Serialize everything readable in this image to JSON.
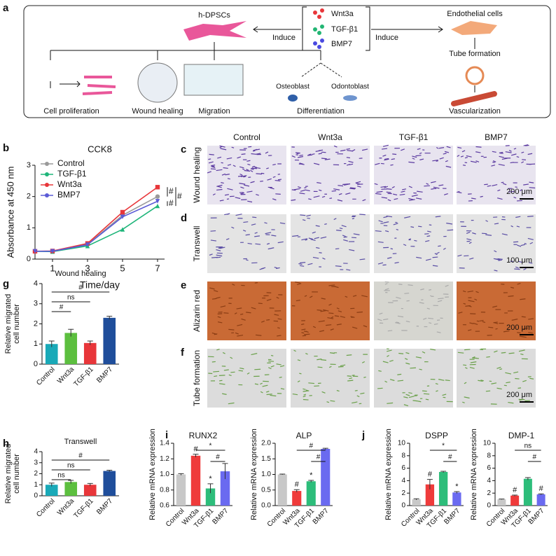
{
  "panel_a": {
    "letter": "a",
    "center": "h-DPSCs",
    "factors": [
      "Wnt3a",
      "TGF-β1",
      "BMP7"
    ],
    "induce_left": "Induce",
    "induce_right": "Induce",
    "endothelial": "Endothelial cells",
    "tube": "Tube formation",
    "vascular": "Vascularization",
    "outcomes": [
      "Cell proliferation",
      "Wound healing",
      "Migration",
      "Differentiation"
    ],
    "osteoblast": "Osteoblast",
    "odontoblast": "Odontoblast"
  },
  "micrographs": {
    "columns": [
      "Control",
      "Wnt3a",
      "TGF-β1",
      "BMP7"
    ],
    "rows": [
      {
        "letter": "c",
        "label": "Wound healing",
        "scale": "200 μm"
      },
      {
        "letter": "d",
        "label": "Transwell",
        "scale": "100 μm"
      },
      {
        "letter": "e",
        "label": "Alizarin red",
        "scale": "200 μm"
      },
      {
        "letter": "f",
        "label": "Tube formation",
        "scale": "200 μm"
      }
    ]
  },
  "chart_data": [
    {
      "type": "line",
      "letter": "b",
      "title": "CCK8",
      "xlabel": "Time/day",
      "ylabel": "Absorbance at 450 nm",
      "x": [
        0,
        1,
        3,
        5,
        7
      ],
      "xlim": [
        0,
        7.4
      ],
      "xticks": [
        1,
        3,
        5,
        7
      ],
      "ylim": [
        0,
        3
      ],
      "yticks": [
        0,
        1,
        2,
        3
      ],
      "legend": "upper left",
      "series": [
        {
          "name": "Control",
          "color": "#9a9a9a",
          "values": [
            0.25,
            0.25,
            0.47,
            1.4,
            2.0
          ]
        },
        {
          "name": "TGF-β1",
          "color": "#1fb57a",
          "values": [
            0.25,
            0.24,
            0.42,
            0.95,
            1.7
          ]
        },
        {
          "name": "Wnt3a",
          "color": "#e8363a",
          "values": [
            0.25,
            0.26,
            0.5,
            1.5,
            2.3
          ]
        },
        {
          "name": "BMP7",
          "color": "#5b5bd6",
          "values": [
            0.25,
            0.25,
            0.46,
            1.35,
            1.85
          ]
        }
      ],
      "annotations": [
        "#",
        "#",
        "#"
      ]
    },
    {
      "type": "bar",
      "letter": "g",
      "title": "Wound healing",
      "ylabel": [
        "Relative migrated",
        "cell number"
      ],
      "categories": [
        "Control",
        "Wnt3a",
        "TGF-β1",
        "BMP7"
      ],
      "values": [
        1.0,
        1.55,
        1.05,
        2.3
      ],
      "errors": [
        0.15,
        0.18,
        0.1,
        0.08
      ],
      "colors": [
        "#19a9b8",
        "#5cbf3f",
        "#e8363a",
        "#1f4e9b"
      ],
      "ylim": [
        0,
        4
      ],
      "yticks": [
        0,
        1,
        2,
        3,
        4
      ],
      "annotations": [
        "#",
        "ns",
        "#"
      ]
    },
    {
      "type": "bar",
      "letter": "h",
      "title": "Transwell",
      "ylabel": [
        "Relative migrated",
        "cell number"
      ],
      "categories": [
        "Control",
        "Wnt3a",
        "TGF-β1",
        "BMP7"
      ],
      "values": [
        1.0,
        1.25,
        1.0,
        2.25
      ],
      "errors": [
        0.15,
        0.15,
        0.12,
        0.07
      ],
      "colors": [
        "#19a9b8",
        "#5cbf3f",
        "#e8363a",
        "#1f4e9b"
      ],
      "ylim": [
        0,
        4
      ],
      "yticks": [
        0,
        1,
        2,
        3,
        4
      ],
      "annotations": [
        "ns",
        "ns",
        "#"
      ]
    },
    {
      "type": "bar",
      "letter": "i",
      "title": "RUNX2",
      "ylabel": [
        "Relative mRNA expression"
      ],
      "categories": [
        "Control",
        "Wnt3a",
        "TGF-β1",
        "BMP7"
      ],
      "values": [
        1.0,
        1.24,
        0.82,
        1.04
      ],
      "errors": [
        0.01,
        0.02,
        0.06,
        0.1
      ],
      "colors": [
        "#c8c8c8",
        "#ef3b3b",
        "#2dbd7a",
        "#6a6af0"
      ],
      "ylim": [
        0.6,
        1.4
      ],
      "yticks": [
        0.6,
        0.8,
        {
          "value": 1.0,
          "label": "1.0"
        },
        1.2,
        1.4
      ],
      "bar_labels": [
        null,
        "#",
        "*",
        null
      ],
      "annotations": [
        "*",
        "#"
      ]
    },
    {
      "type": "bar",
      "title": "ALP",
      "ylabel": [
        "Relative mRNA expression"
      ],
      "categories": [
        "Control",
        "Wnt3a",
        "TGF-β1",
        "BMP7"
      ],
      "values": [
        1.0,
        0.47,
        0.78,
        1.82
      ],
      "errors": [
        0.01,
        0.04,
        0.03,
        0.02
      ],
      "colors": [
        "#c8c8c8",
        "#ef3b3b",
        "#2dbd7a",
        "#6a6af0"
      ],
      "ylim": [
        0,
        2
      ],
      "yticks": [
        {
          "value": 0,
          "label": "0.0"
        },
        0.5,
        {
          "value": 1,
          "label": "1.0"
        },
        1.5,
        {
          "value": 2,
          "label": "2.0"
        }
      ],
      "bar_labels": [
        null,
        "#",
        "*",
        null
      ],
      "annotations": [
        "#",
        "#"
      ]
    },
    {
      "type": "bar",
      "letter": "j",
      "title": "DSPP",
      "ylabel": [
        "Relative mRNA expression"
      ],
      "categories": [
        "Control",
        "Wnt3a",
        "TGF-β1",
        "BMP7"
      ],
      "values": [
        1.0,
        3.4,
        5.4,
        2.1
      ],
      "errors": [
        0.1,
        0.8,
        0.1,
        0.15
      ],
      "colors": [
        "#c8c8c8",
        "#ef3b3b",
        "#2dbd7a",
        "#6a6af0"
      ],
      "ylim": [
        0,
        10
      ],
      "yticks": [
        0,
        2,
        4,
        6,
        8,
        10
      ],
      "bar_labels": [
        null,
        "#",
        null,
        "*"
      ],
      "annotations": [
        "*",
        "#"
      ]
    },
    {
      "type": "bar",
      "title": "DMP-1",
      "ylabel": [
        "Relative mRNA expression"
      ],
      "categories": [
        "Control",
        "Wnt3a",
        "TGF-β1",
        "BMP7"
      ],
      "values": [
        1.0,
        1.6,
        4.3,
        1.8
      ],
      "errors": [
        0.05,
        0.08,
        0.2,
        0.08
      ],
      "colors": [
        "#c8c8c8",
        "#ef3b3b",
        "#2dbd7a",
        "#6a6af0"
      ],
      "ylim": [
        0,
        10
      ],
      "yticks": [
        0,
        2,
        4,
        6,
        8,
        10
      ],
      "bar_labels": [
        null,
        "#",
        null,
        "#"
      ],
      "annotations": [
        "ns",
        "#"
      ]
    }
  ]
}
